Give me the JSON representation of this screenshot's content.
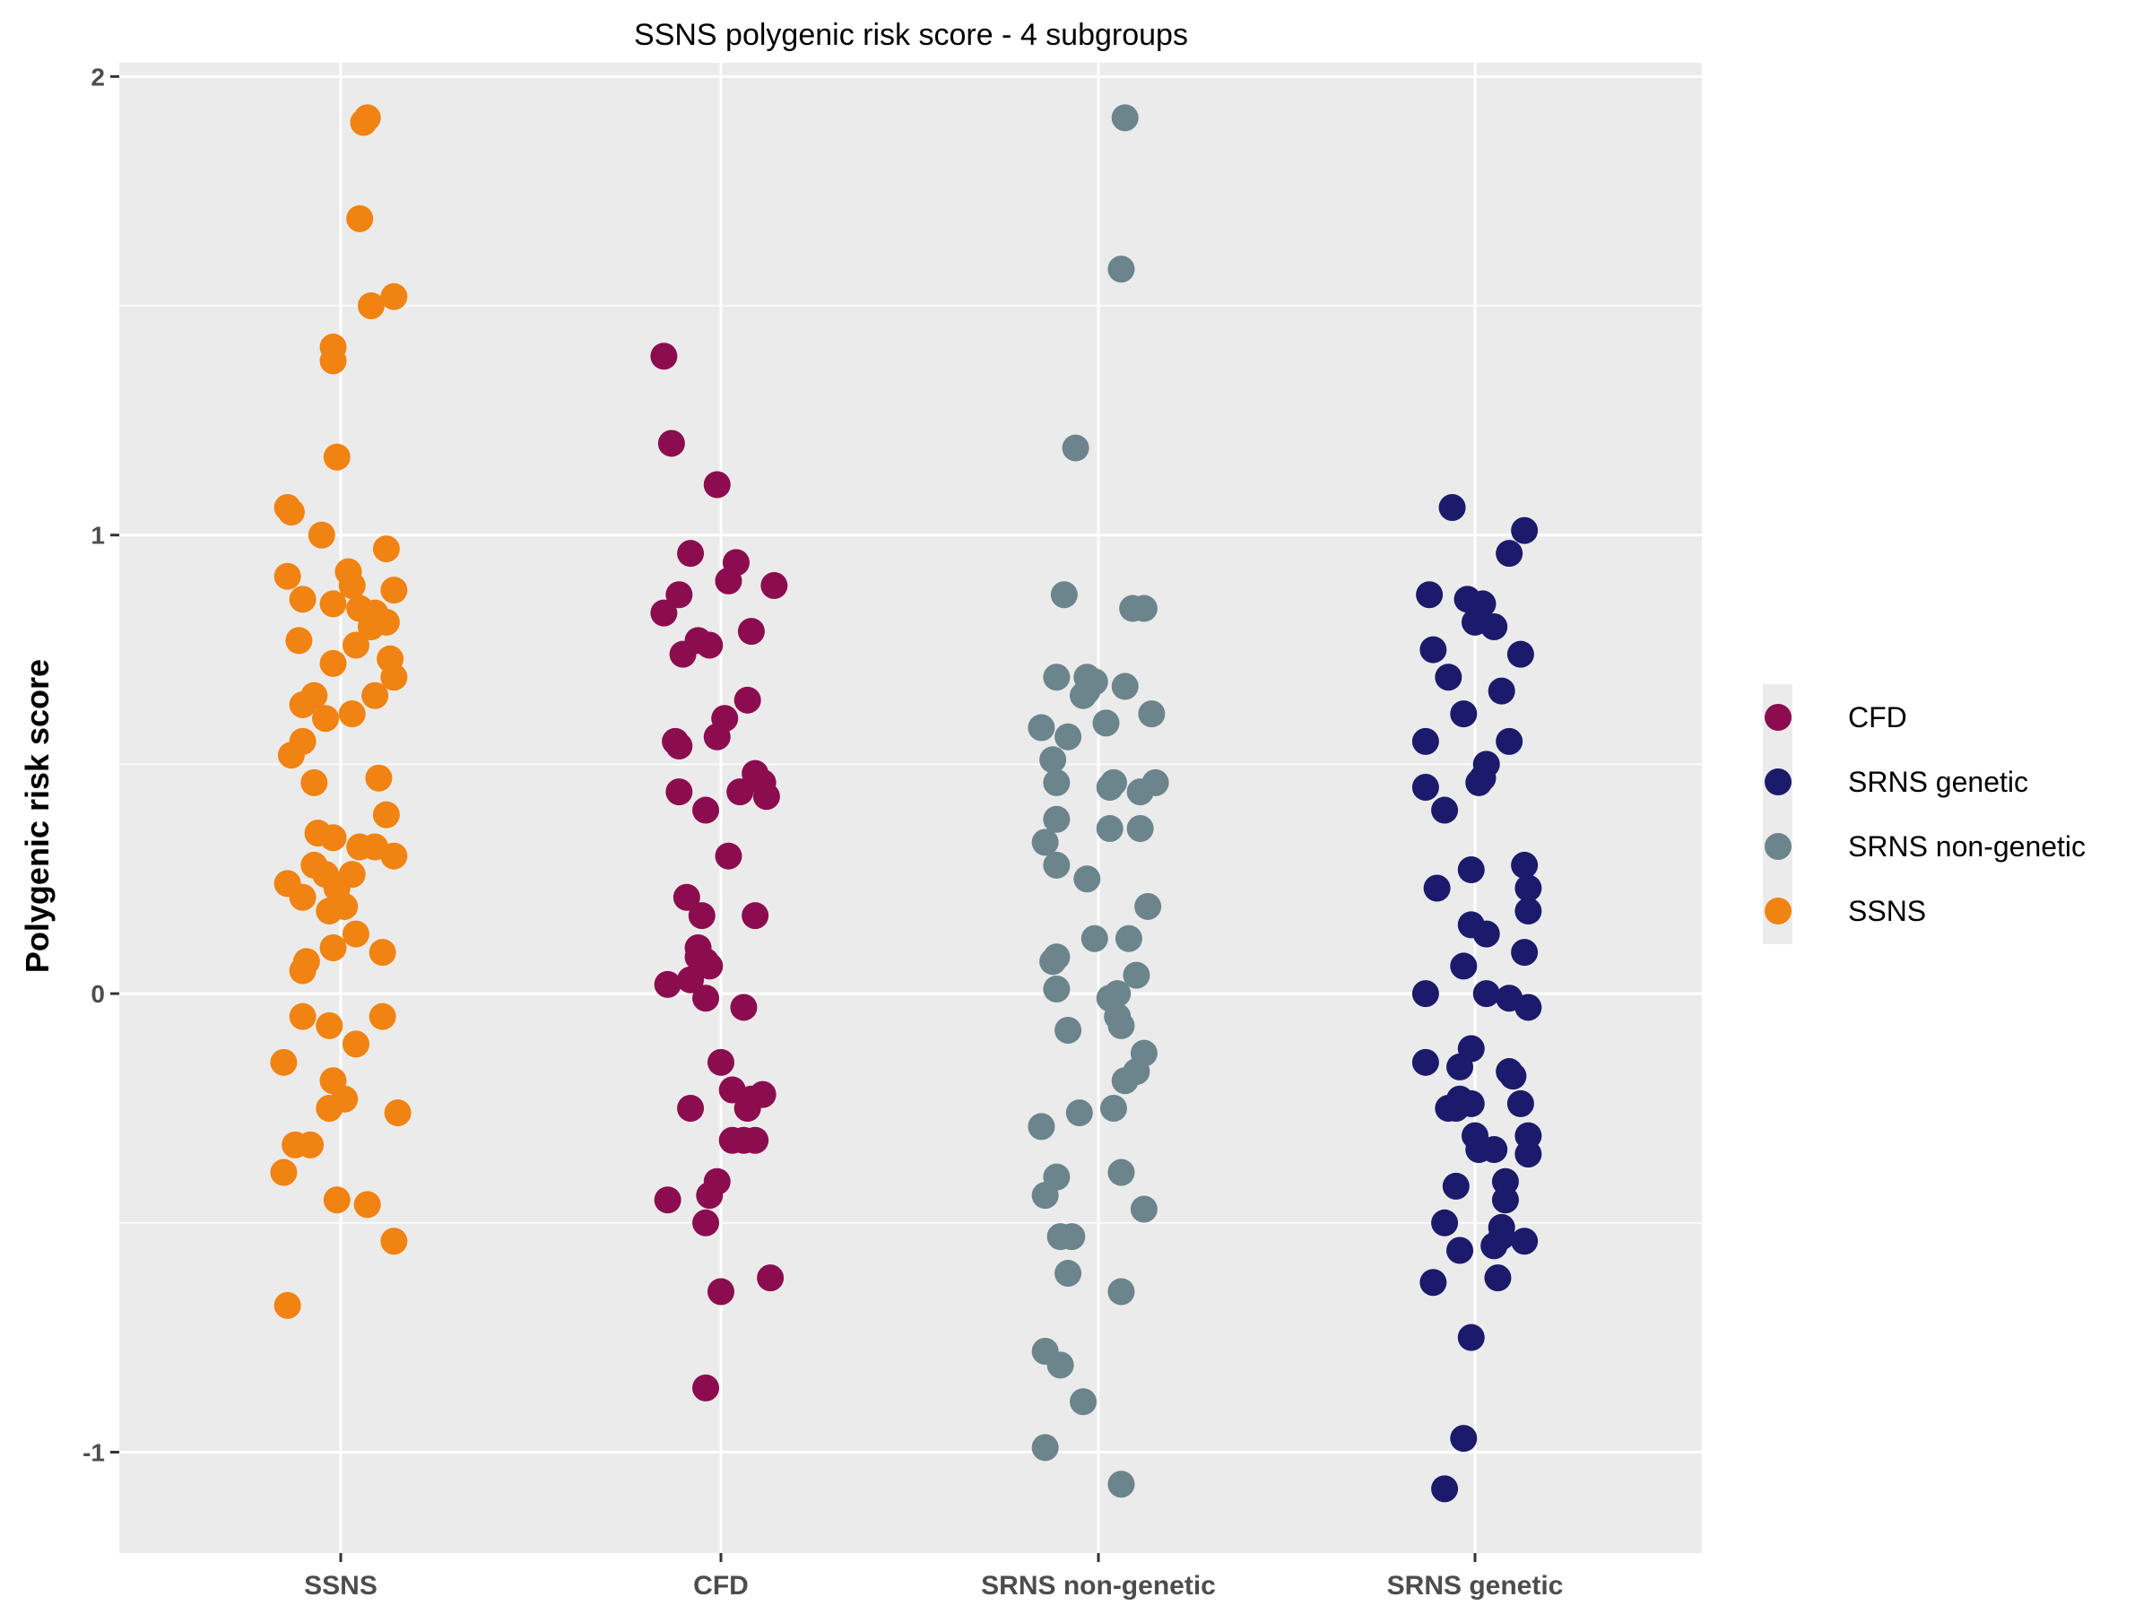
{
  "chart_data": {
    "type": "scatter",
    "title": "SSNS polygenic risk score - 4 subgroups",
    "xlabel": "",
    "ylabel": "Polygenic risk score",
    "categories": [
      "SSNS",
      "CFD",
      "SRNS non-genetic",
      "SRNS genetic"
    ],
    "y_ticks": [
      "2",
      "1",
      "0",
      "-1"
    ],
    "y_tick_values": [
      2,
      1,
      0,
      -1
    ],
    "ylim": [
      -1.22,
      2.03
    ],
    "grid": true,
    "legend_position": "right",
    "legend": [
      {
        "name": "CFD",
        "color": "#8b0d4f"
      },
      {
        "name": "SRNS genetic",
        "color": "#1b1a6b"
      },
      {
        "name": "SRNS non-genetic",
        "color": "#6c848c"
      },
      {
        "name": "SSNS",
        "color": "#f08312"
      }
    ],
    "series": [
      {
        "name": "SSNS",
        "category": "SSNS",
        "color": "#f08312",
        "points": [
          [
            0.07,
            1.91
          ],
          [
            0.06,
            1.9
          ],
          [
            0.05,
            1.69
          ],
          [
            0.08,
            1.5
          ],
          [
            0.14,
            1.52
          ],
          [
            -0.02,
            1.41
          ],
          [
            -0.02,
            1.38
          ],
          [
            -0.01,
            1.17
          ],
          [
            -0.14,
            1.06
          ],
          [
            -0.13,
            1.05
          ],
          [
            -0.05,
            1.0
          ],
          [
            0.02,
            0.92
          ],
          [
            0.12,
            0.97
          ],
          [
            -0.14,
            0.91
          ],
          [
            0.03,
            0.89
          ],
          [
            -0.1,
            0.86
          ],
          [
            0.14,
            0.88
          ],
          [
            -0.02,
            0.85
          ],
          [
            0.05,
            0.84
          ],
          [
            0.09,
            0.83
          ],
          [
            0.12,
            0.81
          ],
          [
            0.08,
            0.8
          ],
          [
            -0.11,
            0.77
          ],
          [
            0.04,
            0.76
          ],
          [
            0.13,
            0.73
          ],
          [
            -0.02,
            0.72
          ],
          [
            0.14,
            0.69
          ],
          [
            0.09,
            0.65
          ],
          [
            -0.07,
            0.65
          ],
          [
            -0.1,
            0.63
          ],
          [
            0.03,
            0.61
          ],
          [
            -0.04,
            0.6
          ],
          [
            -0.1,
            0.55
          ],
          [
            -0.13,
            0.52
          ],
          [
            -0.07,
            0.46
          ],
          [
            0.1,
            0.47
          ],
          [
            0.12,
            0.39
          ],
          [
            -0.06,
            0.35
          ],
          [
            -0.02,
            0.34
          ],
          [
            0.05,
            0.32
          ],
          [
            0.09,
            0.32
          ],
          [
            0.14,
            0.3
          ],
          [
            -0.07,
            0.28
          ],
          [
            -0.04,
            0.26
          ],
          [
            0.03,
            0.26
          ],
          [
            -0.14,
            0.24
          ],
          [
            -0.01,
            0.23
          ],
          [
            -0.1,
            0.21
          ],
          [
            0.01,
            0.19
          ],
          [
            -0.03,
            0.18
          ],
          [
            0.04,
            0.13
          ],
          [
            -0.02,
            0.1
          ],
          [
            0.11,
            0.09
          ],
          [
            -0.09,
            0.07
          ],
          [
            -0.1,
            0.05
          ],
          [
            -0.1,
            -0.05
          ],
          [
            0.11,
            -0.05
          ],
          [
            -0.03,
            -0.07
          ],
          [
            0.04,
            -0.11
          ],
          [
            -0.15,
            -0.15
          ],
          [
            -0.02,
            -0.19
          ],
          [
            0.01,
            -0.23
          ],
          [
            -0.03,
            -0.25
          ],
          [
            0.15,
            -0.26
          ],
          [
            -0.12,
            -0.33
          ],
          [
            -0.08,
            -0.33
          ],
          [
            -0.15,
            -0.39
          ],
          [
            -0.01,
            -0.45
          ],
          [
            0.07,
            -0.46
          ],
          [
            0.14,
            -0.54
          ],
          [
            -0.14,
            -0.68
          ]
        ]
      },
      {
        "name": "CFD",
        "category": "CFD",
        "color": "#8b0d4f",
        "points": [
          [
            -0.15,
            1.39
          ],
          [
            -0.13,
            1.2
          ],
          [
            -0.01,
            1.11
          ],
          [
            -0.08,
            0.96
          ],
          [
            0.04,
            0.94
          ],
          [
            0.02,
            0.9
          ],
          [
            0.14,
            0.89
          ],
          [
            -0.11,
            0.87
          ],
          [
            -0.15,
            0.83
          ],
          [
            0.08,
            0.79
          ],
          [
            -0.06,
            0.77
          ],
          [
            -0.03,
            0.76
          ],
          [
            -0.1,
            0.74
          ],
          [
            0.07,
            0.64
          ],
          [
            0.01,
            0.6
          ],
          [
            -0.01,
            0.56
          ],
          [
            -0.12,
            0.55
          ],
          [
            -0.11,
            0.54
          ],
          [
            0.09,
            0.48
          ],
          [
            0.11,
            0.46
          ],
          [
            0.05,
            0.44
          ],
          [
            -0.11,
            0.44
          ],
          [
            0.12,
            0.43
          ],
          [
            -0.04,
            0.4
          ],
          [
            0.02,
            0.3
          ],
          [
            -0.09,
            0.21
          ],
          [
            -0.05,
            0.17
          ],
          [
            0.09,
            0.17
          ],
          [
            -0.06,
            0.1
          ],
          [
            -0.06,
            0.08
          ],
          [
            -0.04,
            0.07
          ],
          [
            -0.03,
            0.06
          ],
          [
            -0.08,
            0.03
          ],
          [
            -0.14,
            0.02
          ],
          [
            -0.04,
            -0.01
          ],
          [
            0.06,
            -0.03
          ],
          [
            0.0,
            -0.15
          ],
          [
            0.03,
            -0.21
          ],
          [
            0.11,
            -0.22
          ],
          [
            0.08,
            -0.23
          ],
          [
            0.07,
            -0.25
          ],
          [
            -0.08,
            -0.25
          ],
          [
            0.03,
            -0.32
          ],
          [
            0.06,
            -0.32
          ],
          [
            0.09,
            -0.32
          ],
          [
            -0.01,
            -0.41
          ],
          [
            -0.03,
            -0.44
          ],
          [
            -0.14,
            -0.45
          ],
          [
            -0.04,
            -0.5
          ],
          [
            0.13,
            -0.62
          ],
          [
            0.0,
            -0.65
          ],
          [
            -0.04,
            -0.86
          ]
        ]
      },
      {
        "name": "SRNS non-genetic",
        "category": "SRNS non-genetic",
        "color": "#6c848c",
        "points": [
          [
            0.07,
            1.91
          ],
          [
            0.06,
            1.58
          ],
          [
            -0.06,
            1.19
          ],
          [
            -0.09,
            0.87
          ],
          [
            0.09,
            0.84
          ],
          [
            0.12,
            0.84
          ],
          [
            -0.11,
            0.69
          ],
          [
            -0.03,
            0.69
          ],
          [
            -0.01,
            0.68
          ],
          [
            0.07,
            0.67
          ],
          [
            -0.03,
            0.66
          ],
          [
            -0.04,
            0.65
          ],
          [
            0.14,
            0.61
          ],
          [
            0.02,
            0.59
          ],
          [
            -0.15,
            0.58
          ],
          [
            -0.08,
            0.56
          ],
          [
            -0.12,
            0.51
          ],
          [
            0.04,
            0.46
          ],
          [
            0.15,
            0.46
          ],
          [
            0.03,
            0.45
          ],
          [
            -0.11,
            0.46
          ],
          [
            0.11,
            0.44
          ],
          [
            -0.11,
            0.38
          ],
          [
            0.03,
            0.36
          ],
          [
            0.11,
            0.36
          ],
          [
            -0.14,
            0.33
          ],
          [
            -0.11,
            0.28
          ],
          [
            -0.03,
            0.25
          ],
          [
            0.13,
            0.19
          ],
          [
            -0.01,
            0.12
          ],
          [
            0.08,
            0.12
          ],
          [
            -0.11,
            0.08
          ],
          [
            -0.12,
            0.07
          ],
          [
            0.1,
            0.04
          ],
          [
            -0.11,
            0.01
          ],
          [
            0.05,
            0.0
          ],
          [
            0.03,
            -0.01
          ],
          [
            0.05,
            -0.05
          ],
          [
            0.06,
            -0.07
          ],
          [
            -0.08,
            -0.08
          ],
          [
            0.12,
            -0.13
          ],
          [
            0.1,
            -0.17
          ],
          [
            0.07,
            -0.19
          ],
          [
            0.04,
            -0.25
          ],
          [
            -0.05,
            -0.26
          ],
          [
            -0.15,
            -0.29
          ],
          [
            -0.11,
            -0.4
          ],
          [
            0.06,
            -0.39
          ],
          [
            0.12,
            -0.47
          ],
          [
            -0.14,
            -0.44
          ],
          [
            -0.1,
            -0.53
          ],
          [
            -0.07,
            -0.53
          ],
          [
            -0.08,
            -0.61
          ],
          [
            0.06,
            -0.65
          ],
          [
            -0.14,
            -0.78
          ],
          [
            -0.1,
            -0.81
          ],
          [
            -0.04,
            -0.89
          ],
          [
            -0.14,
            -0.99
          ],
          [
            0.06,
            -1.07
          ]
        ]
      },
      {
        "name": "SRNS genetic",
        "category": "SRNS genetic",
        "color": "#1b1a6b",
        "points": [
          [
            -0.06,
            1.06
          ],
          [
            0.13,
            1.01
          ],
          [
            0.09,
            0.96
          ],
          [
            -0.12,
            0.87
          ],
          [
            -0.02,
            0.86
          ],
          [
            0.02,
            0.85
          ],
          [
            0.0,
            0.81
          ],
          [
            0.05,
            0.8
          ],
          [
            -0.11,
            0.75
          ],
          [
            0.12,
            0.74
          ],
          [
            -0.07,
            0.69
          ],
          [
            0.07,
            0.66
          ],
          [
            -0.03,
            0.61
          ],
          [
            -0.13,
            0.55
          ],
          [
            0.09,
            0.55
          ],
          [
            0.03,
            0.5
          ],
          [
            0.02,
            0.47
          ],
          [
            0.01,
            0.46
          ],
          [
            -0.13,
            0.45
          ],
          [
            -0.08,
            0.4
          ],
          [
            0.13,
            0.28
          ],
          [
            -0.01,
            0.27
          ],
          [
            0.14,
            0.23
          ],
          [
            -0.1,
            0.23
          ],
          [
            0.14,
            0.18
          ],
          [
            -0.01,
            0.15
          ],
          [
            0.03,
            0.13
          ],
          [
            0.13,
            0.09
          ],
          [
            -0.03,
            0.06
          ],
          [
            -0.13,
            0.0
          ],
          [
            0.03,
            0.0
          ],
          [
            0.09,
            -0.01
          ],
          [
            0.14,
            -0.03
          ],
          [
            -0.01,
            -0.12
          ],
          [
            -0.04,
            -0.16
          ],
          [
            -0.13,
            -0.15
          ],
          [
            0.09,
            -0.17
          ],
          [
            0.1,
            -0.18
          ],
          [
            -0.04,
            -0.23
          ],
          [
            -0.05,
            -0.25
          ],
          [
            -0.07,
            -0.25
          ],
          [
            -0.01,
            -0.24
          ],
          [
            0.12,
            -0.24
          ],
          [
            0.0,
            -0.31
          ],
          [
            0.14,
            -0.31
          ],
          [
            0.01,
            -0.34
          ],
          [
            0.05,
            -0.34
          ],
          [
            0.14,
            -0.35
          ],
          [
            0.08,
            -0.41
          ],
          [
            0.08,
            -0.45
          ],
          [
            -0.05,
            -0.42
          ],
          [
            -0.08,
            -0.5
          ],
          [
            0.07,
            -0.51
          ],
          [
            0.07,
            -0.53
          ],
          [
            0.05,
            -0.55
          ],
          [
            0.13,
            -0.54
          ],
          [
            -0.04,
            -0.56
          ],
          [
            0.06,
            -0.62
          ],
          [
            -0.11,
            -0.63
          ],
          [
            -0.01,
            -0.75
          ],
          [
            -0.03,
            -0.97
          ],
          [
            -0.08,
            -1.08
          ]
        ]
      }
    ]
  }
}
